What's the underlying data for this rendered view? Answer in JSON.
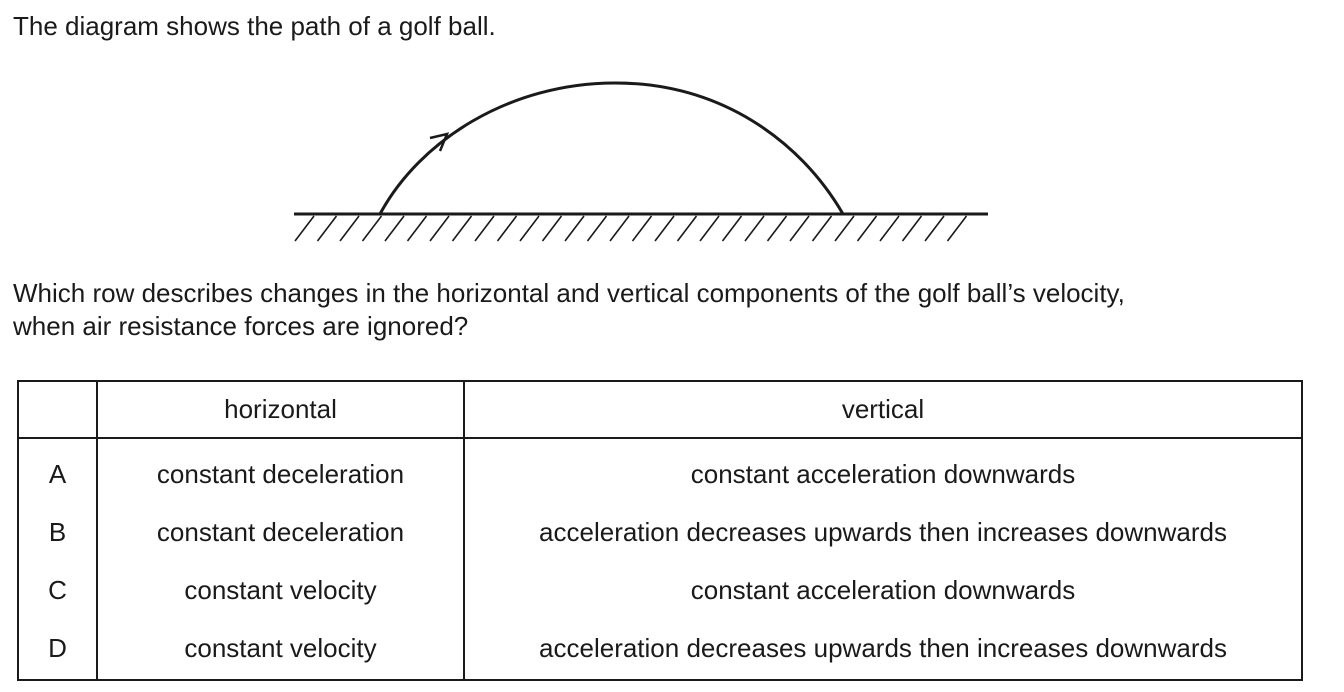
{
  "intro": "The diagram shows the path of a golf ball.",
  "question_line1": "Which row describes changes in the horizontal and vertical components of the golf ball’s velocity,",
  "question_line2": "when air resistance forces are ignored?",
  "table": {
    "headers": [
      "",
      "horizontal",
      "vertical"
    ],
    "rows": [
      {
        "key": "A",
        "horizontal": "constant deceleration",
        "vertical": "constant acceleration downwards"
      },
      {
        "key": "B",
        "horizontal": "constant deceleration",
        "vertical": "acceleration decreases upwards then increases downwards"
      },
      {
        "key": "C",
        "horizontal": "constant velocity",
        "vertical": "constant acceleration downwards"
      },
      {
        "key": "D",
        "horizontal": "constant velocity",
        "vertical": "acceleration decreases upwards then increases downwards"
      }
    ]
  },
  "diagram": {
    "elements": [
      "trajectory-arc",
      "direction-arrow-icon",
      "ground-line",
      "ground-hatching"
    ],
    "stroke_color": "#1a1a1a"
  }
}
